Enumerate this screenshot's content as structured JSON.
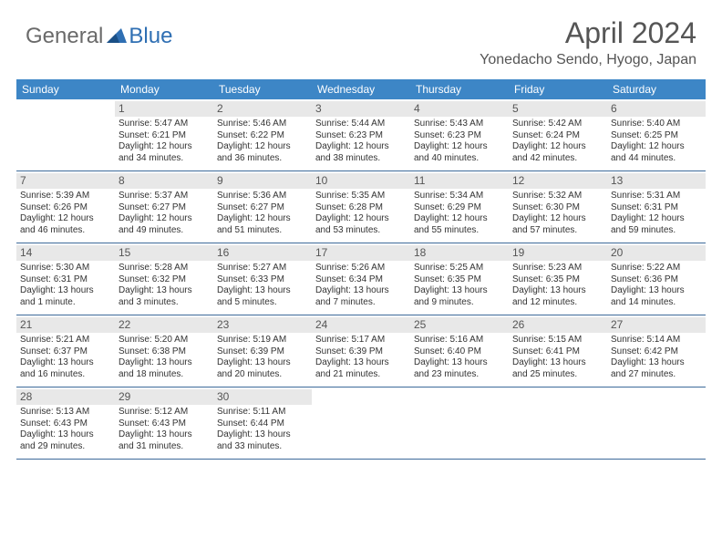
{
  "logo": {
    "part1": "General",
    "part2": "Blue"
  },
  "title": "April 2024",
  "location": "Yonedacho Sendo, Hyogo, Japan",
  "colors": {
    "header_bg": "#3d86c6",
    "rule": "#3d6a9a",
    "daynum_bg": "#e8e8e8",
    "title_color": "#555555",
    "logo_gray": "#6a6a6a",
    "logo_blue": "#2f6fb3"
  },
  "day_headers": [
    "Sunday",
    "Monday",
    "Tuesday",
    "Wednesday",
    "Thursday",
    "Friday",
    "Saturday"
  ],
  "weeks": [
    [
      {
        "n": "",
        "lines": []
      },
      {
        "n": "1",
        "lines": [
          "Sunrise: 5:47 AM",
          "Sunset: 6:21 PM",
          "Daylight: 12 hours",
          "and 34 minutes."
        ]
      },
      {
        "n": "2",
        "lines": [
          "Sunrise: 5:46 AM",
          "Sunset: 6:22 PM",
          "Daylight: 12 hours",
          "and 36 minutes."
        ]
      },
      {
        "n": "3",
        "lines": [
          "Sunrise: 5:44 AM",
          "Sunset: 6:23 PM",
          "Daylight: 12 hours",
          "and 38 minutes."
        ]
      },
      {
        "n": "4",
        "lines": [
          "Sunrise: 5:43 AM",
          "Sunset: 6:23 PM",
          "Daylight: 12 hours",
          "and 40 minutes."
        ]
      },
      {
        "n": "5",
        "lines": [
          "Sunrise: 5:42 AM",
          "Sunset: 6:24 PM",
          "Daylight: 12 hours",
          "and 42 minutes."
        ]
      },
      {
        "n": "6",
        "lines": [
          "Sunrise: 5:40 AM",
          "Sunset: 6:25 PM",
          "Daylight: 12 hours",
          "and 44 minutes."
        ]
      }
    ],
    [
      {
        "n": "7",
        "lines": [
          "Sunrise: 5:39 AM",
          "Sunset: 6:26 PM",
          "Daylight: 12 hours",
          "and 46 minutes."
        ]
      },
      {
        "n": "8",
        "lines": [
          "Sunrise: 5:37 AM",
          "Sunset: 6:27 PM",
          "Daylight: 12 hours",
          "and 49 minutes."
        ]
      },
      {
        "n": "9",
        "lines": [
          "Sunrise: 5:36 AM",
          "Sunset: 6:27 PM",
          "Daylight: 12 hours",
          "and 51 minutes."
        ]
      },
      {
        "n": "10",
        "lines": [
          "Sunrise: 5:35 AM",
          "Sunset: 6:28 PM",
          "Daylight: 12 hours",
          "and 53 minutes."
        ]
      },
      {
        "n": "11",
        "lines": [
          "Sunrise: 5:34 AM",
          "Sunset: 6:29 PM",
          "Daylight: 12 hours",
          "and 55 minutes."
        ]
      },
      {
        "n": "12",
        "lines": [
          "Sunrise: 5:32 AM",
          "Sunset: 6:30 PM",
          "Daylight: 12 hours",
          "and 57 minutes."
        ]
      },
      {
        "n": "13",
        "lines": [
          "Sunrise: 5:31 AM",
          "Sunset: 6:31 PM",
          "Daylight: 12 hours",
          "and 59 minutes."
        ]
      }
    ],
    [
      {
        "n": "14",
        "lines": [
          "Sunrise: 5:30 AM",
          "Sunset: 6:31 PM",
          "Daylight: 13 hours",
          "and 1 minute."
        ]
      },
      {
        "n": "15",
        "lines": [
          "Sunrise: 5:28 AM",
          "Sunset: 6:32 PM",
          "Daylight: 13 hours",
          "and 3 minutes."
        ]
      },
      {
        "n": "16",
        "lines": [
          "Sunrise: 5:27 AM",
          "Sunset: 6:33 PM",
          "Daylight: 13 hours",
          "and 5 minutes."
        ]
      },
      {
        "n": "17",
        "lines": [
          "Sunrise: 5:26 AM",
          "Sunset: 6:34 PM",
          "Daylight: 13 hours",
          "and 7 minutes."
        ]
      },
      {
        "n": "18",
        "lines": [
          "Sunrise: 5:25 AM",
          "Sunset: 6:35 PM",
          "Daylight: 13 hours",
          "and 9 minutes."
        ]
      },
      {
        "n": "19",
        "lines": [
          "Sunrise: 5:23 AM",
          "Sunset: 6:35 PM",
          "Daylight: 13 hours",
          "and 12 minutes."
        ]
      },
      {
        "n": "20",
        "lines": [
          "Sunrise: 5:22 AM",
          "Sunset: 6:36 PM",
          "Daylight: 13 hours",
          "and 14 minutes."
        ]
      }
    ],
    [
      {
        "n": "21",
        "lines": [
          "Sunrise: 5:21 AM",
          "Sunset: 6:37 PM",
          "Daylight: 13 hours",
          "and 16 minutes."
        ]
      },
      {
        "n": "22",
        "lines": [
          "Sunrise: 5:20 AM",
          "Sunset: 6:38 PM",
          "Daylight: 13 hours",
          "and 18 minutes."
        ]
      },
      {
        "n": "23",
        "lines": [
          "Sunrise: 5:19 AM",
          "Sunset: 6:39 PM",
          "Daylight: 13 hours",
          "and 20 minutes."
        ]
      },
      {
        "n": "24",
        "lines": [
          "Sunrise: 5:17 AM",
          "Sunset: 6:39 PM",
          "Daylight: 13 hours",
          "and 21 minutes."
        ]
      },
      {
        "n": "25",
        "lines": [
          "Sunrise: 5:16 AM",
          "Sunset: 6:40 PM",
          "Daylight: 13 hours",
          "and 23 minutes."
        ]
      },
      {
        "n": "26",
        "lines": [
          "Sunrise: 5:15 AM",
          "Sunset: 6:41 PM",
          "Daylight: 13 hours",
          "and 25 minutes."
        ]
      },
      {
        "n": "27",
        "lines": [
          "Sunrise: 5:14 AM",
          "Sunset: 6:42 PM",
          "Daylight: 13 hours",
          "and 27 minutes."
        ]
      }
    ],
    [
      {
        "n": "28",
        "lines": [
          "Sunrise: 5:13 AM",
          "Sunset: 6:43 PM",
          "Daylight: 13 hours",
          "and 29 minutes."
        ]
      },
      {
        "n": "29",
        "lines": [
          "Sunrise: 5:12 AM",
          "Sunset: 6:43 PM",
          "Daylight: 13 hours",
          "and 31 minutes."
        ]
      },
      {
        "n": "30",
        "lines": [
          "Sunrise: 5:11 AM",
          "Sunset: 6:44 PM",
          "Daylight: 13 hours",
          "and 33 minutes."
        ]
      },
      {
        "n": "",
        "lines": []
      },
      {
        "n": "",
        "lines": []
      },
      {
        "n": "",
        "lines": []
      },
      {
        "n": "",
        "lines": []
      }
    ]
  ]
}
